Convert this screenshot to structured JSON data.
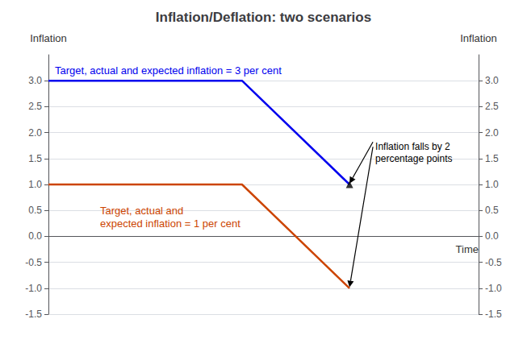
{
  "chart_data": {
    "type": "line",
    "title": "Inflation/Deflation: two scenarios",
    "xlabel": "Time",
    "ylabel": "Inflation",
    "y2label": "Inflation",
    "xlim": [
      0,
      10
    ],
    "ylim": [
      -1.5,
      3.5
    ],
    "yticks": [
      -1.5,
      {
        "value": -1.0,
        "label": "-1.0"
      },
      -0.5,
      {
        "value": 0.0,
        "label": "0.0"
      },
      0.5,
      {
        "value": 1.0,
        "label": "1.0"
      },
      1.5,
      {
        "value": 2.0,
        "label": "2.0"
      },
      2.5,
      {
        "value": 3.0,
        "label": "3.0"
      }
    ],
    "y2lim": [
      -1.5,
      3.5
    ],
    "y2ticks": [
      -1.5,
      {
        "value": -1.0,
        "label": "-1.0"
      },
      -0.5,
      {
        "value": 0.0,
        "label": "0.0"
      },
      0.5,
      {
        "value": 1.0,
        "label": "1.0"
      },
      1.5,
      {
        "value": 2.0,
        "label": "2.0"
      },
      2.5,
      {
        "value": 3.0,
        "label": "3.0"
      }
    ],
    "grid": true,
    "tick_labels": "y",
    "series": [
      {
        "type": "line",
        "color": "#0000EE",
        "x": [
          0,
          4.5,
          7.0
        ],
        "values": [
          3.0,
          3.0,
          1.0
        ]
      },
      {
        "type": "line",
        "color": "#CC4400",
        "x": [
          0,
          4.5,
          7.0
        ],
        "values": [
          1.0,
          1.0,
          -1.0
        ]
      },
      {
        "type": "scatter",
        "marker": "triangle",
        "color": "#000000",
        "x": [
          7.0
        ],
        "values": [
          1.0
        ]
      }
    ],
    "annotations": [
      {
        "text": "Target, actual and expected inflation = 3 per cent",
        "x": 0.15,
        "y": 3.08,
        "color": "#0000EE"
      },
      {
        "text": "Target, actual and\nexpected inflation = 1 per cent",
        "x": 1.2,
        "y": 0.62,
        "color": "#CC4400"
      },
      {
        "text": "Inflation falls by 2\npercentage points",
        "x": 7.6,
        "y": 1.85,
        "color": "#000000",
        "arrows": [
          {
            "x": 7.0,
            "y": 1.02
          },
          {
            "x": 7.0,
            "y": -0.98
          }
        ]
      }
    ]
  }
}
